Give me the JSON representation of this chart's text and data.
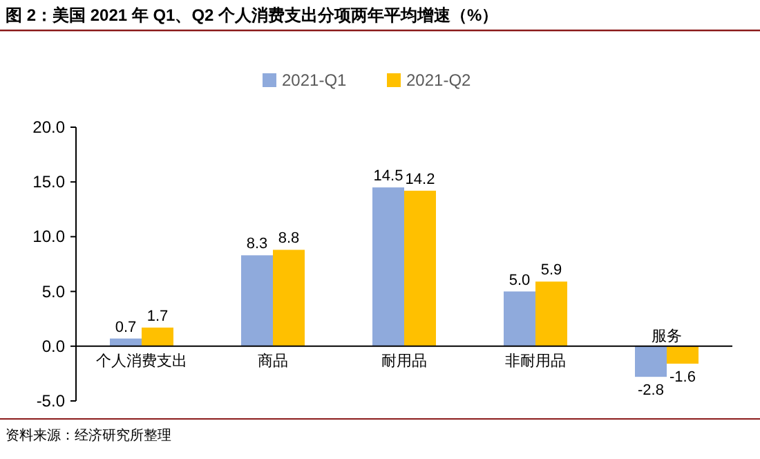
{
  "chart_data": {
    "type": "bar",
    "title": "图 2：美国 2021 年 Q1、Q2 个人消费支出分项两年平均增速（%）",
    "categories": [
      "个人消费支出",
      "商品",
      "耐用品",
      "非耐用品",
      "服务"
    ],
    "series": [
      {
        "name": "2021-Q1",
        "color": "#8faadc",
        "values": [
          0.7,
          8.3,
          14.5,
          5.0,
          -2.8
        ],
        "value_labels": [
          "0.7",
          "8.3",
          "14.5",
          "5.0",
          "-2.8"
        ]
      },
      {
        "name": "2021-Q2",
        "color": "#ffc000",
        "values": [
          1.7,
          8.8,
          14.2,
          5.9,
          -1.6
        ],
        "value_labels": [
          "1.7",
          "8.8",
          "14.2",
          "5.9",
          "-1.6"
        ]
      }
    ],
    "ylim": [
      -5,
      20
    ],
    "yticks": [
      {
        "value": -5,
        "label": "-5.0"
      },
      {
        "value": 0,
        "label": "0.0"
      },
      {
        "value": 5,
        "label": "5.0"
      },
      {
        "value": 10,
        "label": "10.0"
      },
      {
        "value": 15,
        "label": "15.0"
      },
      {
        "value": 20,
        "label": "20.0"
      }
    ],
    "legend": "top",
    "grid": false,
    "annotations": [
      "资料来源：经济研究所整理"
    ]
  }
}
